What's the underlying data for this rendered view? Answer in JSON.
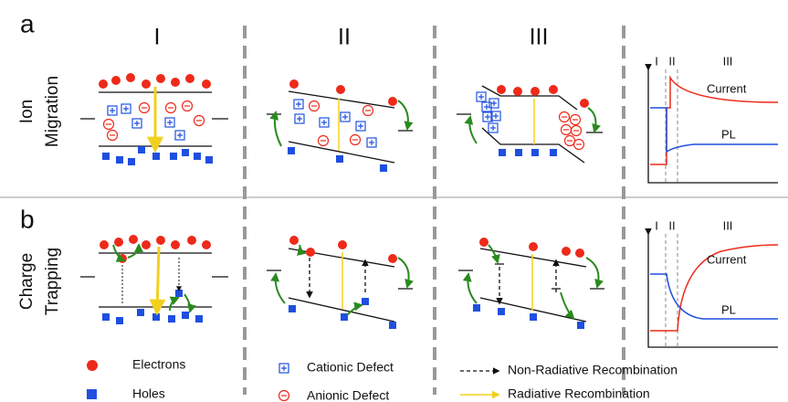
{
  "columns": [
    "I",
    "II",
    "III"
  ],
  "rows": [
    {
      "label": "a",
      "title_lines": [
        "Ion",
        "Migration"
      ],
      "plot": {
        "phases": [
          "I",
          "II",
          "III"
        ],
        "curves": [
          "Current",
          "PL"
        ]
      }
    },
    {
      "label": "b",
      "title_lines": [
        "Charge",
        "Trapping"
      ],
      "plot": {
        "phases": [
          "I",
          "II",
          "III"
        ],
        "curves": [
          "Current",
          "PL"
        ]
      }
    }
  ],
  "legend": [
    "Electrons",
    "Holes",
    "Cationic Defect",
    "Anionic Defect",
    "Non-Radiative Recombination",
    "Radiative Recombination"
  ]
}
